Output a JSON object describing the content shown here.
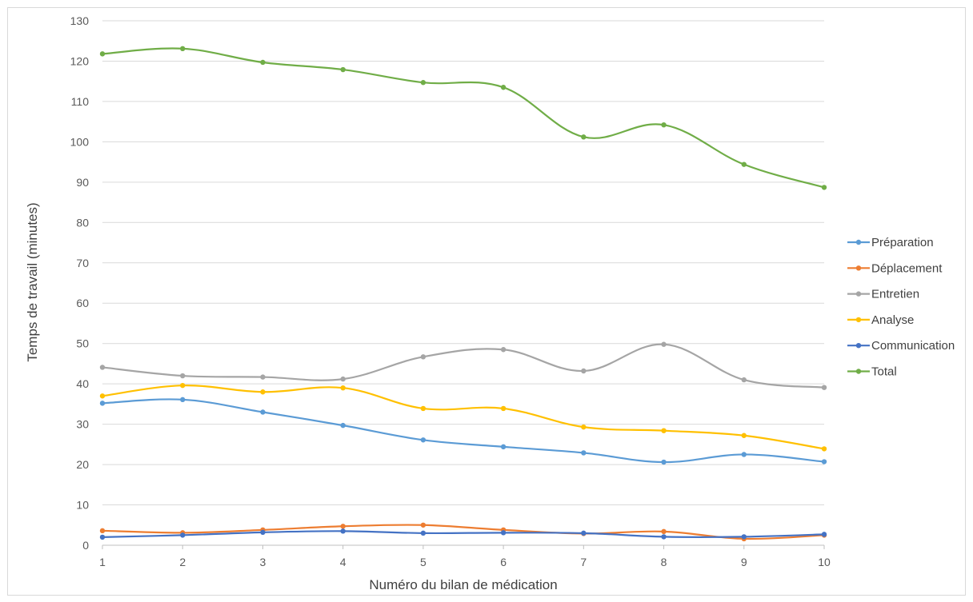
{
  "chart_data": {
    "type": "line",
    "title": "",
    "xlabel": "Numéro du bilan de médication",
    "ylabel": "Temps de travail (minutes)",
    "x": [
      1,
      2,
      3,
      4,
      5,
      6,
      7,
      8,
      9,
      10
    ],
    "ylim": [
      0,
      130
    ],
    "yticks": [
      0,
      10,
      20,
      30,
      40,
      50,
      60,
      70,
      80,
      90,
      100,
      110,
      120,
      130
    ],
    "grid": true,
    "legend_position": "right",
    "series": [
      {
        "name": "Préparation",
        "color": "#5B9BD5",
        "values": [
          35.2,
          36.1,
          33.0,
          29.7,
          26.1,
          24.4,
          22.9,
          20.6,
          22.5,
          20.7
        ]
      },
      {
        "name": "Déplacement",
        "color": "#ED7D31",
        "values": [
          3.6,
          3.1,
          3.8,
          4.7,
          5.0,
          3.8,
          2.9,
          3.4,
          1.6,
          2.5
        ]
      },
      {
        "name": "Entretien",
        "color": "#A5A5A5",
        "values": [
          44.1,
          42.0,
          41.7,
          41.2,
          46.7,
          48.5,
          43.2,
          49.8,
          41.0,
          39.1
        ]
      },
      {
        "name": "Analyse",
        "color": "#FFC000",
        "values": [
          37.0,
          39.6,
          38.0,
          39.0,
          33.9,
          33.9,
          29.3,
          28.4,
          27.2,
          23.9
        ]
      },
      {
        "name": "Communication",
        "color": "#4472C4",
        "values": [
          2.0,
          2.5,
          3.2,
          3.5,
          3.0,
          3.1,
          3.0,
          2.1,
          2.1,
          2.7
        ]
      },
      {
        "name": "Total",
        "color": "#70AD47",
        "values": [
          121.8,
          123.1,
          119.7,
          117.9,
          114.7,
          113.5,
          101.2,
          104.2,
          94.4,
          88.7
        ]
      }
    ]
  }
}
